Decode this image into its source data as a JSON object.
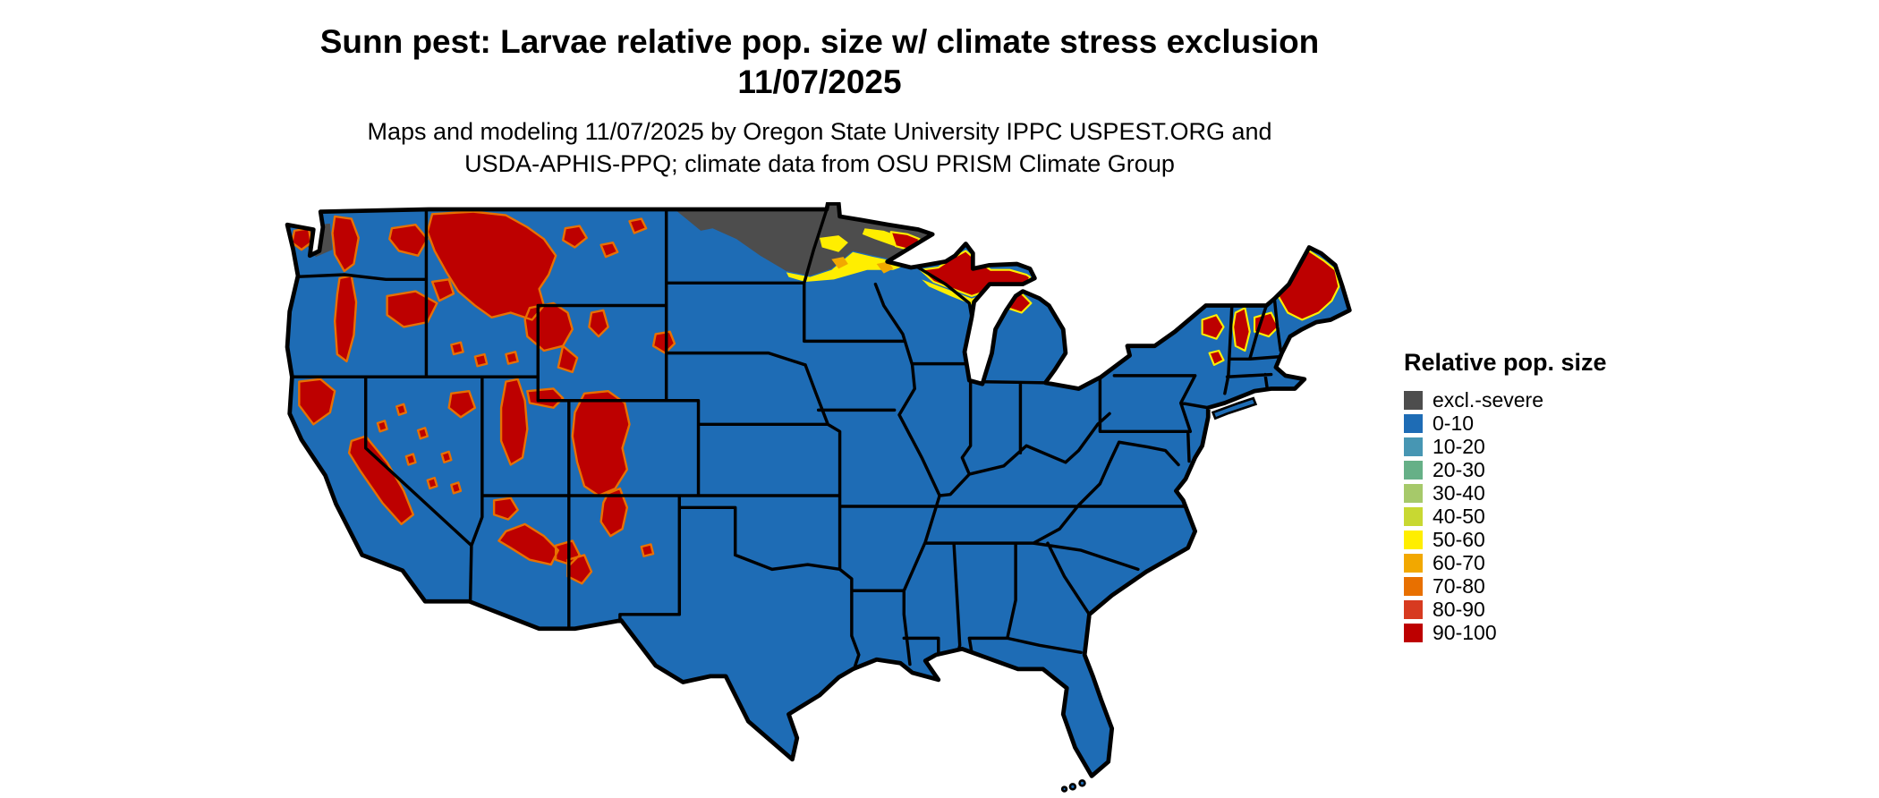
{
  "title": {
    "line1": "Sunn pest: Larvae relative pop. size w/ climate stress exclusion",
    "line2": "11/07/2025"
  },
  "subtitle": {
    "line1": "Maps and modeling 11/07/2025 by Oregon State University IPPC USPEST.ORG and",
    "line2": "USDA-APHIS-PPQ; climate data from OSU PRISM Climate Group"
  },
  "legend": {
    "title": "Relative pop. size",
    "items": [
      {
        "label": "excl.-severe",
        "color": "#4d4d4d"
      },
      {
        "label": "0-10",
        "color": "#1e6cb5"
      },
      {
        "label": "10-20",
        "color": "#4796b3"
      },
      {
        "label": "20-30",
        "color": "#66b087"
      },
      {
        "label": "30-40",
        "color": "#a6c96a"
      },
      {
        "label": "40-50",
        "color": "#c8d832"
      },
      {
        "label": "50-60",
        "color": "#ffee00"
      },
      {
        "label": "60-70",
        "color": "#f2a800"
      },
      {
        "label": "70-80",
        "color": "#e87000"
      },
      {
        "label": "80-90",
        "color": "#d73a20"
      },
      {
        "label": "90-100",
        "color": "#bd0000"
      }
    ]
  },
  "map": {
    "region": "Continental United States",
    "border_color": "#000000",
    "background_color": "#ffffff"
  }
}
